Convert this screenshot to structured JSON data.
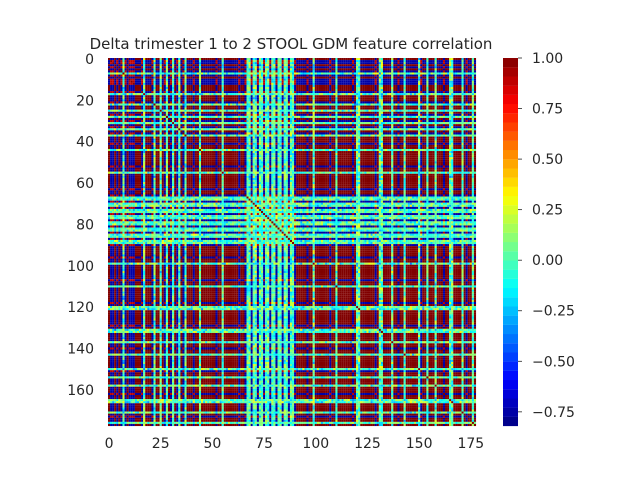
{
  "chart_data": {
    "type": "heatmap",
    "title": "Delta trimester 1 to 2 STOOL GDM feature correlation",
    "n_features": 178,
    "colormap": "jet",
    "color_levels": 40,
    "x_ticks": [
      0,
      25,
      50,
      75,
      100,
      125,
      150,
      175
    ],
    "x_tick_labels": [
      "0",
      "25",
      "50",
      "75",
      "100",
      "125",
      "150",
      "175"
    ],
    "y_ticks": [
      0,
      20,
      40,
      60,
      80,
      100,
      120,
      140,
      160
    ],
    "y_tick_labels": [
      "0",
      "20",
      "40",
      "60",
      "80",
      "100",
      "120",
      "140",
      "160"
    ],
    "colorbar": {
      "range": [
        -0.82,
        1.0
      ],
      "ticks": [
        1.0,
        0.75,
        0.5,
        0.25,
        0.0,
        -0.25,
        -0.5,
        -0.75
      ],
      "tick_labels": [
        "1.00",
        "0.75",
        "0.50",
        "0.25",
        "0.00",
        "−0.25",
        "−0.50",
        "−0.75"
      ]
    },
    "structure_note_values": {
      "diagonal": 1.0,
      "dominant_block_value": 1.0,
      "anti_correlated_block_value": -0.75
    }
  }
}
